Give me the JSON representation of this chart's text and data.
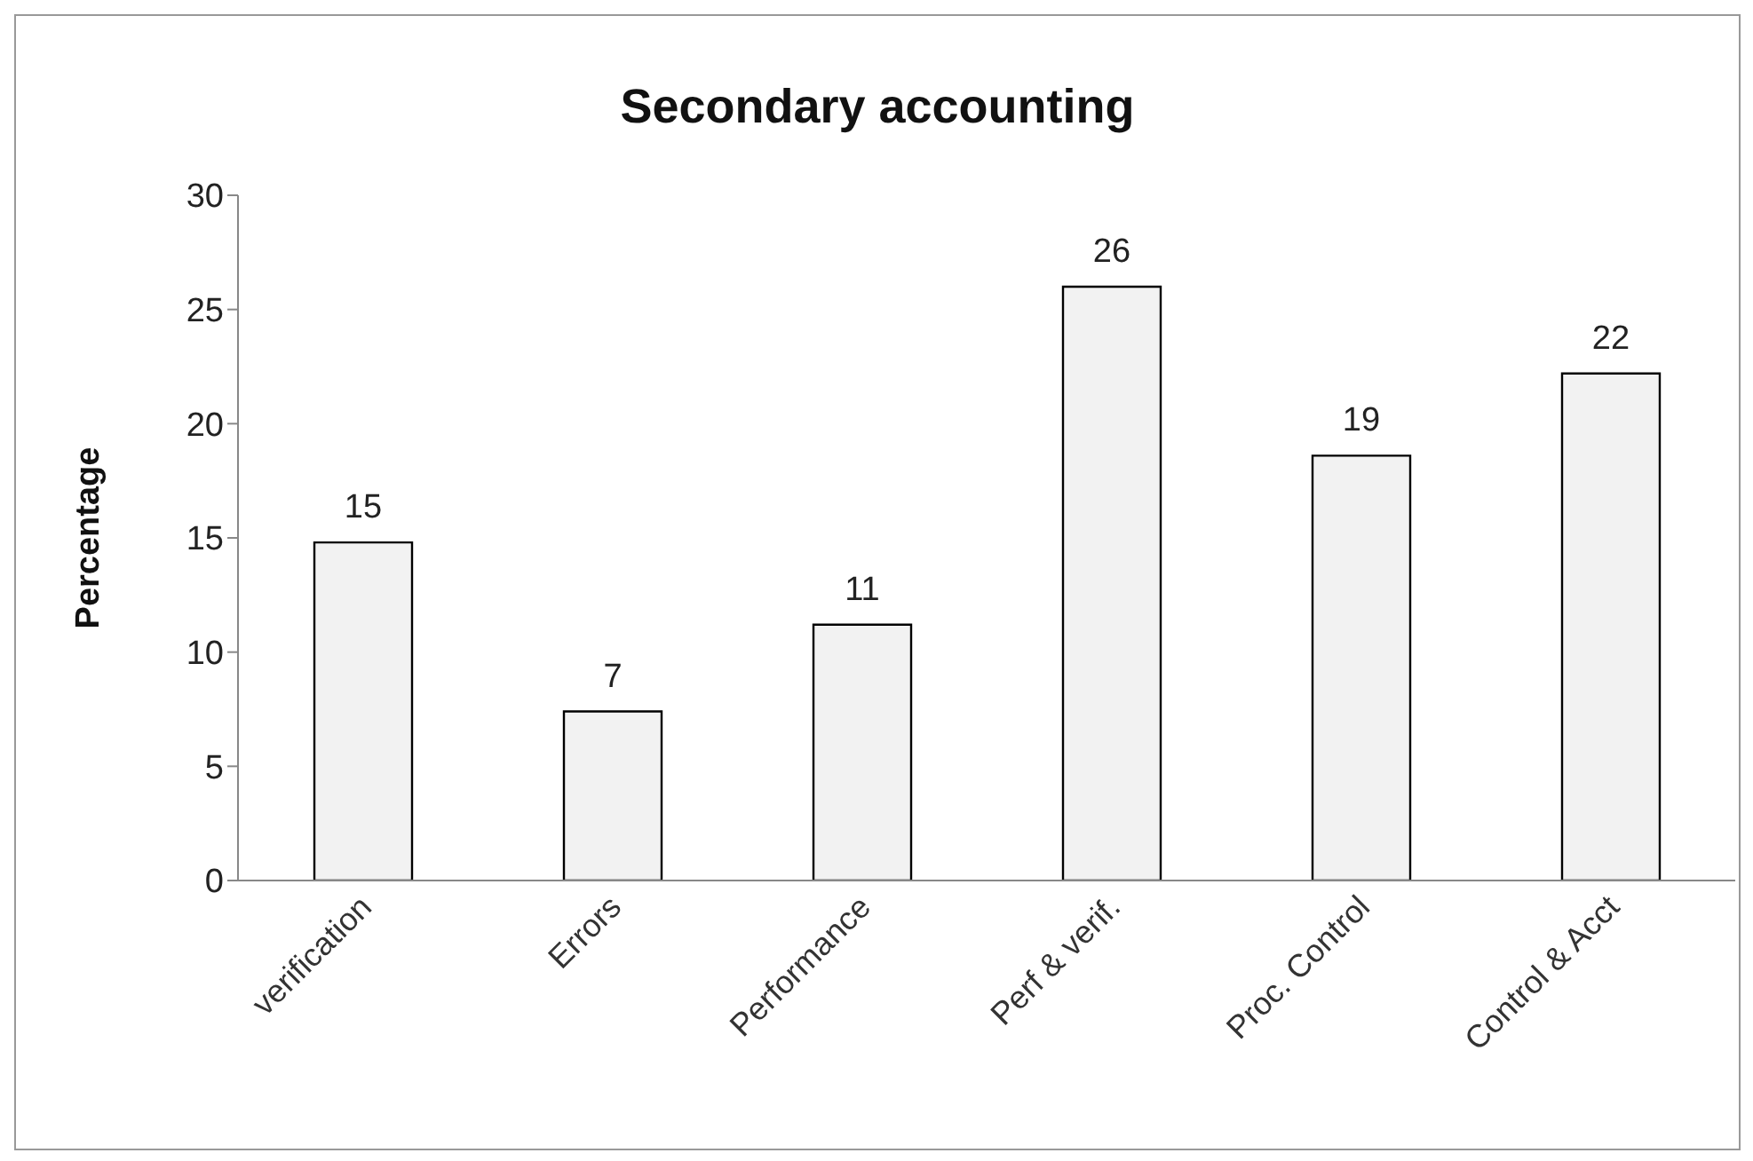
{
  "chart_data": {
    "type": "bar",
    "title": "Secondary accounting",
    "ylabel": "Percentage",
    "categories": [
      "verification",
      "Errors",
      "Performance",
      "Perf & verif.",
      "Proc. Control",
      "Control & Acct"
    ],
    "values": [
      14.8,
      7.4,
      11.2,
      26,
      18.6,
      22.2
    ],
    "value_labels": [
      "15",
      "7",
      "11",
      "26",
      "19",
      "22"
    ],
    "color": "#f2f2f2",
    "ylim": [
      0,
      30
    ],
    "yticks": [
      0,
      5,
      10,
      15,
      20,
      25,
      30
    ],
    "grid": false
  }
}
